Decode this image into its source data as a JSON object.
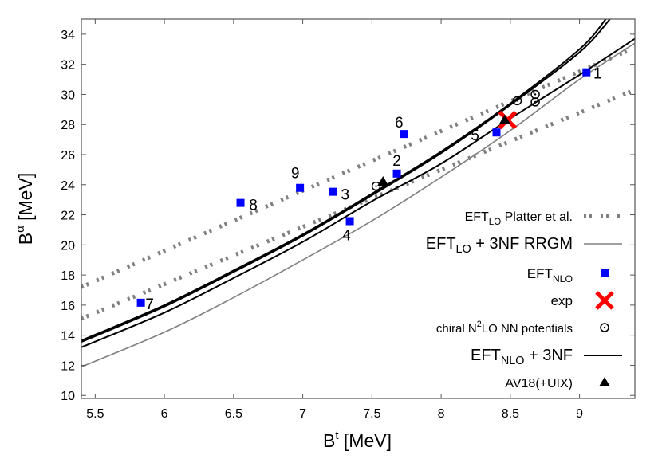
{
  "chart_data": {
    "type": "scatter",
    "xlabel": {
      "base": "B",
      "sup": "t",
      "rest": " [MeV]"
    },
    "ylabel": {
      "base": "B",
      "sup": "α",
      "rest": " [MeV]"
    },
    "xlim": [
      5.4,
      9.4
    ],
    "ylim": [
      9.8,
      35
    ],
    "xticks": [
      5.5,
      6,
      6.5,
      7,
      7.5,
      8,
      8.5,
      9
    ],
    "xtick_labels": [
      "5.5",
      "6",
      "6.5",
      "7",
      "7.5",
      "8",
      "8.5",
      "9"
    ],
    "yticks": [
      10,
      12,
      14,
      16,
      18,
      20,
      22,
      24,
      26,
      28,
      30,
      32,
      34
    ],
    "ytick_labels": [
      "10",
      "12",
      "14",
      "16",
      "18",
      "20",
      "22",
      "24",
      "26",
      "28",
      "30",
      "32",
      "34"
    ],
    "grid": false,
    "legend_placement": "bottom-right",
    "series": [
      {
        "key": "platter",
        "legend": {
          "base": "EFT",
          "sub": "LO",
          "rest": " Platter et al."
        },
        "style": "dotted",
        "color": "#808080",
        "lines": [
          [
            [
              5.4,
              17.2
            ],
            [
              7.0,
              23.6
            ],
            [
              9.4,
              33.1
            ]
          ],
          [
            [
              5.4,
              15.1
            ],
            [
              7.0,
              21.2
            ],
            [
              9.4,
              30.3
            ]
          ]
        ]
      },
      {
        "key": "rrgm",
        "legend": {
          "base": "EFT",
          "sub": "LO",
          "rest": " + 3NF RRGM"
        },
        "style": "line",
        "color": "#808080",
        "lines": [
          [
            [
              5.4,
              11.9
            ],
            [
              6,
              14.2
            ],
            [
              6.5,
              16.5
            ],
            [
              7,
              19.0
            ],
            [
              7.5,
              21.6
            ],
            [
              8,
              24.5
            ],
            [
              8.5,
              27.6
            ],
            [
              9,
              31.0
            ],
            [
              9.4,
              33.4
            ]
          ]
        ]
      },
      {
        "key": "nlo",
        "legend": {
          "base": "EFT",
          "sub": "NLO",
          "rest": ""
        },
        "style": "square",
        "color": "#0000ff",
        "points": [
          {
            "label": "1",
            "x": 9.05,
            "y": 31.47
          },
          {
            "label": "2",
            "x": 7.68,
            "y": 24.74
          },
          {
            "label": "3",
            "x": 7.22,
            "y": 23.53
          },
          {
            "label": "4",
            "x": 7.34,
            "y": 21.58
          },
          {
            "label": "5",
            "x": 8.4,
            "y": 27.47
          },
          {
            "label": "6",
            "x": 7.73,
            "y": 27.37
          },
          {
            "label": "7",
            "x": 5.83,
            "y": 16.16
          },
          {
            "label": "8",
            "x": 6.55,
            "y": 22.79
          },
          {
            "label": "9",
            "x": 6.98,
            "y": 23.79
          }
        ]
      },
      {
        "key": "exp",
        "legend": {
          "base": "exp",
          "sub": "",
          "rest": ""
        },
        "style": "cross",
        "color": "#ff0000",
        "points": [
          {
            "x": 8.48,
            "y": 28.3
          }
        ]
      },
      {
        "key": "chiral",
        "legend": {
          "base": "chiral N",
          "sup": "2",
          "rest": "LO NN potentials"
        },
        "style": "circle-dot",
        "color": "#000000",
        "points": [
          {
            "x": 7.53,
            "y": 23.9
          },
          {
            "x": 8.55,
            "y": 29.58
          },
          {
            "x": 8.68,
            "y": 30.0
          },
          {
            "x": 8.68,
            "y": 29.5
          }
        ]
      },
      {
        "key": "nlo3nf",
        "legend": {
          "base": "EFT",
          "sub": "NLO",
          "rest": " + 3NF"
        },
        "style": "line",
        "color": "#000000",
        "lines": [
          [
            [
              5.4,
              13.2
            ],
            [
              6,
              15.5
            ],
            [
              6.5,
              17.8
            ],
            [
              7,
              20.2
            ],
            [
              7.5,
              22.9
            ],
            [
              8,
              25.4
            ],
            [
              8.5,
              28.4
            ],
            [
              9,
              31.3
            ],
            [
              9.4,
              33.7
            ]
          ],
          [
            [
              5.4,
              13.65
            ],
            [
              6,
              16.0
            ],
            [
              6.5,
              18.3
            ],
            [
              7,
              20.7
            ],
            [
              7.5,
              23.4
            ],
            [
              8,
              26.2
            ],
            [
              8.5,
              29.4
            ],
            [
              9,
              33.0
            ],
            [
              9.19,
              35
            ]
          ],
          [
            [
              5.4,
              13.55
            ],
            [
              6,
              15.9
            ],
            [
              6.5,
              18.2
            ],
            [
              7,
              20.6
            ],
            [
              7.5,
              23.3
            ],
            [
              8,
              26.1
            ],
            [
              8.5,
              29.3
            ],
            [
              9,
              32.8
            ],
            [
              9.22,
              35
            ]
          ]
        ]
      },
      {
        "key": "av18",
        "legend": {
          "base": "AV18(+UIX)",
          "sub": "",
          "rest": ""
        },
        "style": "triangle",
        "color": "#000000",
        "points": [
          {
            "x": 7.58,
            "y": 24.2
          },
          {
            "x": 8.46,
            "y": 28.3
          }
        ]
      }
    ]
  }
}
